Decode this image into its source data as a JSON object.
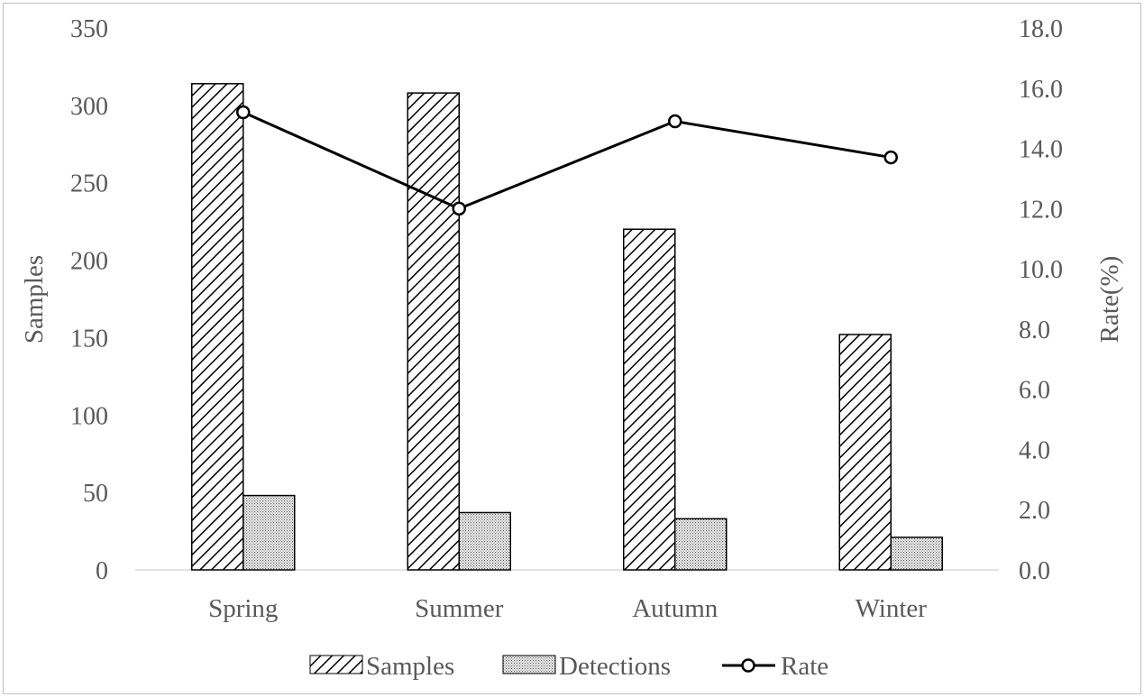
{
  "chart_data": {
    "type": "bar",
    "categories": [
      "Spring",
      "Summer",
      "Autumn",
      "Winter"
    ],
    "series": [
      {
        "name": "Samples",
        "kind": "bar",
        "axis": "left",
        "pattern": "diagonal-hatch",
        "values": [
          314,
          308,
          220,
          152
        ]
      },
      {
        "name": "Detections",
        "kind": "bar",
        "axis": "left",
        "pattern": "dots",
        "values": [
          48,
          37,
          33,
          21
        ]
      },
      {
        "name": "Rate",
        "kind": "line",
        "axis": "right",
        "marker": "open-circle",
        "values": [
          15.2,
          12.0,
          14.9,
          13.7
        ]
      }
    ],
    "y_left": {
      "label": "Samples",
      "min": 0,
      "max": 350,
      "step": 50,
      "ticks": [
        "0",
        "50",
        "100",
        "150",
        "200",
        "250",
        "300",
        "350"
      ]
    },
    "y_right": {
      "label": "Rate(%)",
      "min": 0,
      "max": 18,
      "step": 2,
      "ticks": [
        "0.0",
        "2.0",
        "4.0",
        "6.0",
        "8.0",
        "10.0",
        "12.0",
        "14.0",
        "16.0",
        "18.0"
      ]
    },
    "legend": {
      "position": "bottom",
      "entries": [
        "Samples",
        "Detections",
        "Rate"
      ]
    },
    "grid": false,
    "colors": {
      "bar_stroke": "#000000",
      "line": "#000000",
      "text": "#595959",
      "axis": "#d9d9d9"
    }
  }
}
